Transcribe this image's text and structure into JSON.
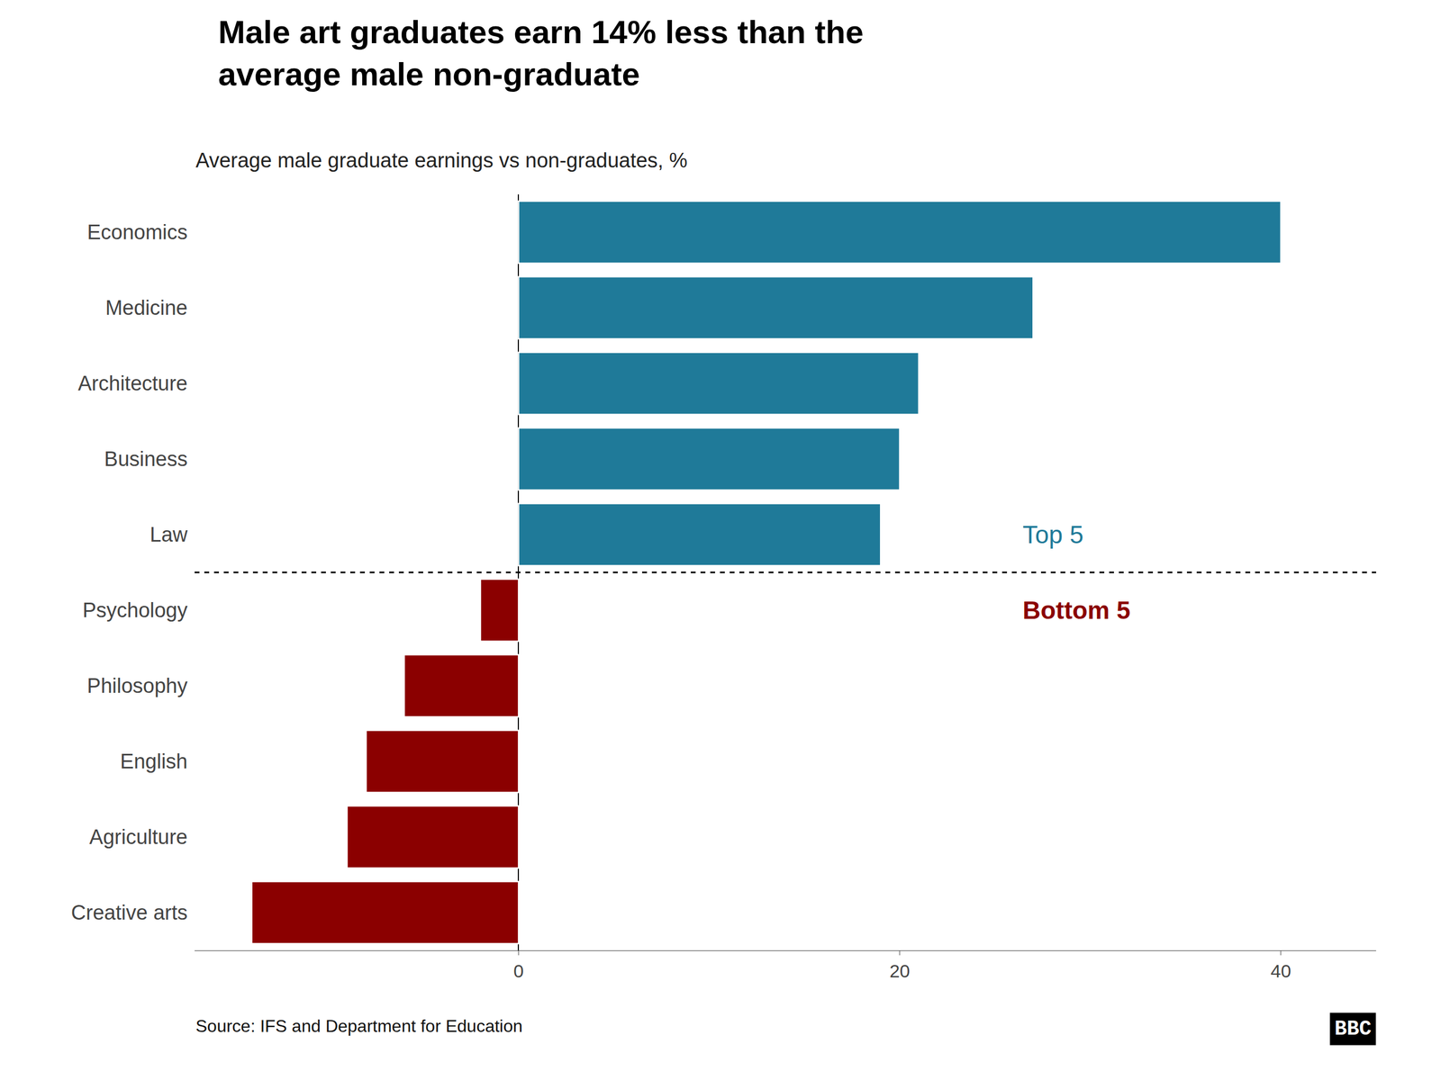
{
  "chart_data": {
    "type": "bar",
    "orientation": "horizontal",
    "title": "Male art graduates earn 14% less than the\naverage male non-graduate",
    "subtitle": "Average male graduate earnings vs non-graduates, %",
    "categories": [
      "Economics",
      "Medicine",
      "Architecture",
      "Business",
      "Law",
      "Psychology",
      "Philosophy",
      "English",
      "Agriculture",
      "Creative arts"
    ],
    "values": [
      40,
      27,
      21,
      20,
      19,
      -2,
      -6,
      -8,
      -9,
      -14
    ],
    "colors": [
      "#1f7a99",
      "#1f7a99",
      "#1f7a99",
      "#1f7a99",
      "#1f7a99",
      "#8b0000",
      "#8b0000",
      "#8b0000",
      "#8b0000",
      "#8b0000"
    ],
    "xlim": [
      -17,
      45
    ],
    "xticks": [
      0,
      20,
      40
    ],
    "grid": false,
    "annotations": [
      {
        "text": "Top 5",
        "color": "#1f7a99",
        "category": "Law"
      },
      {
        "text": "Bottom 5",
        "color": "#8b0000",
        "category": "Psychology"
      }
    ],
    "source": "Source: IFS and Department for Education",
    "credit": "BBC"
  }
}
